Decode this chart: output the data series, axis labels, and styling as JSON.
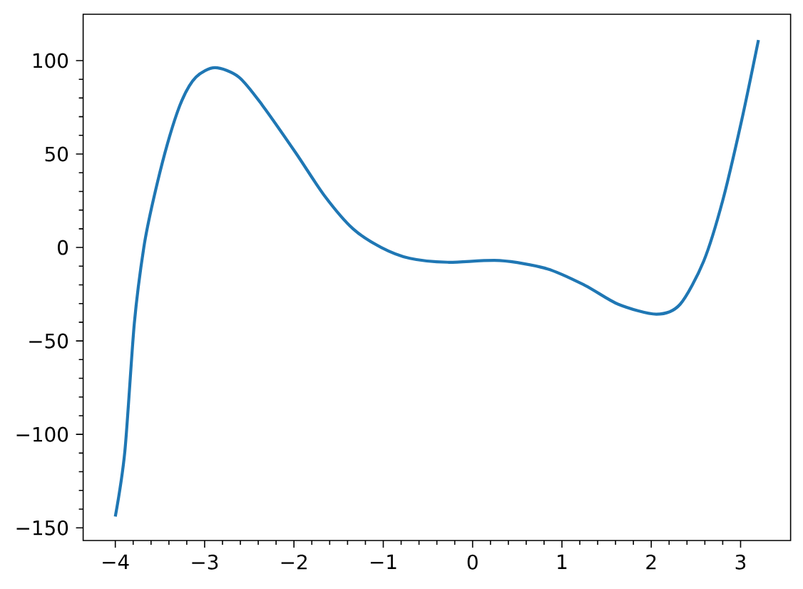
{
  "chart_data": {
    "type": "line",
    "x": [
      -4,
      -3.893,
      -3.787,
      -3.681,
      -3.575,
      -3.415,
      -3.256,
      -3.096,
      -2.884,
      -2.617,
      -2.352,
      -1.979,
      -1.66,
      -1.341,
      -1.022,
      -0.703,
      -0.28,
      0.303,
      0.834,
      1.26,
      1.632,
      2.057,
      2.323,
      2.588,
      2.801,
      3.014,
      3.2
    ],
    "series": [
      {
        "color": "#1f77b4",
        "values": [
          -144,
          -109,
          -40.5,
          0,
          25.3,
          55.7,
          78.5,
          91.2,
          96.2,
          91.2,
          76,
          50.6,
          27.8,
          10.1,
          0,
          -5.8,
          -7.9,
          -7,
          -11.4,
          -20.3,
          -30.4,
          -35.7,
          -30.4,
          -7.2,
          25.3,
          68.4,
          111
        ]
      }
    ],
    "xlim": [
      -4.36,
      3.56
    ],
    "ylim": [
      -156.8,
      124.8
    ],
    "xticks": [
      {
        "value": -4,
        "label": "−4"
      },
      {
        "value": -3,
        "label": "−3"
      },
      {
        "value": -2,
        "label": "−2"
      },
      {
        "value": -1,
        "label": "−1"
      },
      0,
      1,
      2,
      3
    ],
    "yticks": [
      {
        "value": -150,
        "label": "−150"
      },
      {
        "value": -100,
        "label": "−100"
      },
      {
        "value": -50,
        "label": "−50"
      },
      0,
      50,
      100
    ],
    "grid": false
  }
}
